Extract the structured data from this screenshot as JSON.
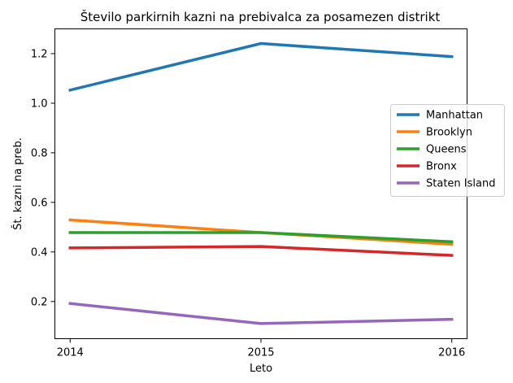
{
  "chart_data": {
    "type": "line",
    "title": "Število parkirnih kazni na prebivalca za posamezen distrikt",
    "xlabel": "Leto",
    "ylabel": "Št. kazni na preb.",
    "x": [
      2014,
      2015,
      2016
    ],
    "x_tick_labels": [
      "2014",
      "2015",
      "2016"
    ],
    "xlim": [
      2013.92,
      2016.08
    ],
    "ylim": [
      0.05,
      1.3
    ],
    "y_ticks": [
      0.2,
      0.4,
      0.6,
      0.8,
      1.0,
      1.2
    ],
    "y_tick_labels": [
      "0.2",
      "0.4",
      "0.6",
      "0.8",
      "1.0",
      "1.2"
    ],
    "grid": false,
    "legend_position": "right",
    "series": [
      {
        "name": "Manhattan",
        "color": "#1f77b4",
        "values": [
          1.053,
          1.241,
          1.188
        ]
      },
      {
        "name": "Brooklyn",
        "color": "#ff7f0e",
        "values": [
          0.529,
          0.478,
          0.431
        ]
      },
      {
        "name": "Queens",
        "color": "#2ca02c",
        "values": [
          0.478,
          0.478,
          0.441
        ]
      },
      {
        "name": "Bronx",
        "color": "#d62728",
        "values": [
          0.416,
          0.422,
          0.386
        ]
      },
      {
        "name": "Staten Island",
        "color": "#9467bd",
        "values": [
          0.192,
          0.111,
          0.128
        ]
      }
    ]
  }
}
